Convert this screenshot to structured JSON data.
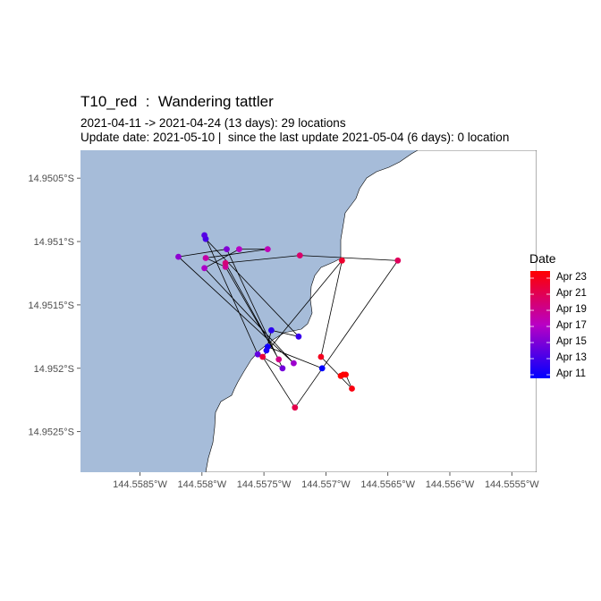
{
  "title": "T10_red  :  Wandering tattler",
  "subtitle_line1": "2021-04-11 -> 2021-04-24 (13 days): 29 locations",
  "subtitle_line2": "Update date: 2021-05-10 |  since the last update 2021-05-04 (6 days): 0 location",
  "map": {
    "x_ticks": [
      {
        "lon": -144.5585,
        "label": "144.5585°W"
      },
      {
        "lon": -144.558,
        "label": "144.558°W"
      },
      {
        "lon": -144.5575,
        "label": "144.5575°W"
      },
      {
        "lon": -144.557,
        "label": "144.557°W"
      },
      {
        "lon": -144.5565,
        "label": "144.5565°W"
      },
      {
        "lon": -144.556,
        "label": "144.556°W"
      },
      {
        "lon": -144.5555,
        "label": "144.5555°W"
      }
    ],
    "y_ticks": [
      {
        "lat": -14.9505,
        "label": "14.9505°S"
      },
      {
        "lat": -14.951,
        "label": "14.951°S"
      },
      {
        "lat": -14.9515,
        "label": "14.9515°S"
      },
      {
        "lat": -14.952,
        "label": "14.952°S"
      },
      {
        "lat": -14.9525,
        "label": "14.9525°S"
      }
    ],
    "xlim": [
      -144.55898,
      -144.5553
    ],
    "ylim": [
      -14.95282,
      -14.95028
    ],
    "sea_color": "#a6bcd9",
    "land_color": "#ffffff",
    "track_color": "#000000",
    "color_low": "#0000ff",
    "color_high": "#ff0000",
    "date_range": [
      "2021-04-11",
      "2021-04-24"
    ]
  },
  "legend": {
    "title": "Date",
    "labels": [
      "Apr 23",
      "Apr 21",
      "Apr 19",
      "Apr 17",
      "Apr 15",
      "Apr 13",
      "Apr 11"
    ]
  },
  "track": [
    {
      "lon": -144.55703,
      "lat": -14.952,
      "day": 0.0
    },
    {
      "lon": -144.55747,
      "lat": -14.95183,
      "day": 0.5
    },
    {
      "lon": -144.55748,
      "lat": -14.95186,
      "day": 1.0
    },
    {
      "lon": -144.55744,
      "lat": -14.9517,
      "day": 1.5
    },
    {
      "lon": -144.55722,
      "lat": -14.95175,
      "day": 2.0
    },
    {
      "lon": -144.55797,
      "lat": -14.95098,
      "day": 2.5
    },
    {
      "lon": -144.55798,
      "lat": -14.95095,
      "day": 3.0
    },
    {
      "lon": -144.55755,
      "lat": -14.95189,
      "day": 3.5
    },
    {
      "lon": -144.55735,
      "lat": -14.952,
      "day": 4.0
    },
    {
      "lon": -144.5578,
      "lat": -14.95106,
      "day": 4.5
    },
    {
      "lon": -144.55819,
      "lat": -14.95112,
      "day": 5.0
    },
    {
      "lon": -144.55726,
      "lat": -14.95196,
      "day": 5.5
    },
    {
      "lon": -144.55798,
      "lat": -14.95121,
      "day": 6.0
    },
    {
      "lon": -144.5577,
      "lat": -14.95106,
      "day": 6.5
    },
    {
      "lon": -144.55747,
      "lat": -14.95106,
      "day": 7.0
    },
    {
      "lon": -144.55797,
      "lat": -14.95113,
      "day": 7.5
    },
    {
      "lon": -144.55781,
      "lat": -14.9512,
      "day": 8.0
    },
    {
      "lon": -144.55738,
      "lat": -14.95193,
      "day": 8.5
    },
    {
      "lon": -144.55781,
      "lat": -14.95117,
      "day": 9.0
    },
    {
      "lon": -144.55721,
      "lat": -14.95111,
      "day": 9.5
    },
    {
      "lon": -144.55642,
      "lat": -14.95115,
      "day": 10.0
    },
    {
      "lon": -144.55725,
      "lat": -14.95231,
      "day": 10.5
    },
    {
      "lon": -144.55751,
      "lat": -14.95191,
      "day": 11.0
    },
    {
      "lon": -144.55687,
      "lat": -14.95115,
      "day": 11.5
    },
    {
      "lon": -144.55704,
      "lat": -14.95191,
      "day": 12.0
    },
    {
      "lon": -144.55679,
      "lat": -14.95216,
      "day": 12.5
    },
    {
      "lon": -144.55684,
      "lat": -14.95205,
      "day": 12.8
    },
    {
      "lon": -144.55686,
      "lat": -14.95205,
      "day": 12.9
    },
    {
      "lon": -144.55688,
      "lat": -14.95206,
      "day": 13.0
    }
  ]
}
